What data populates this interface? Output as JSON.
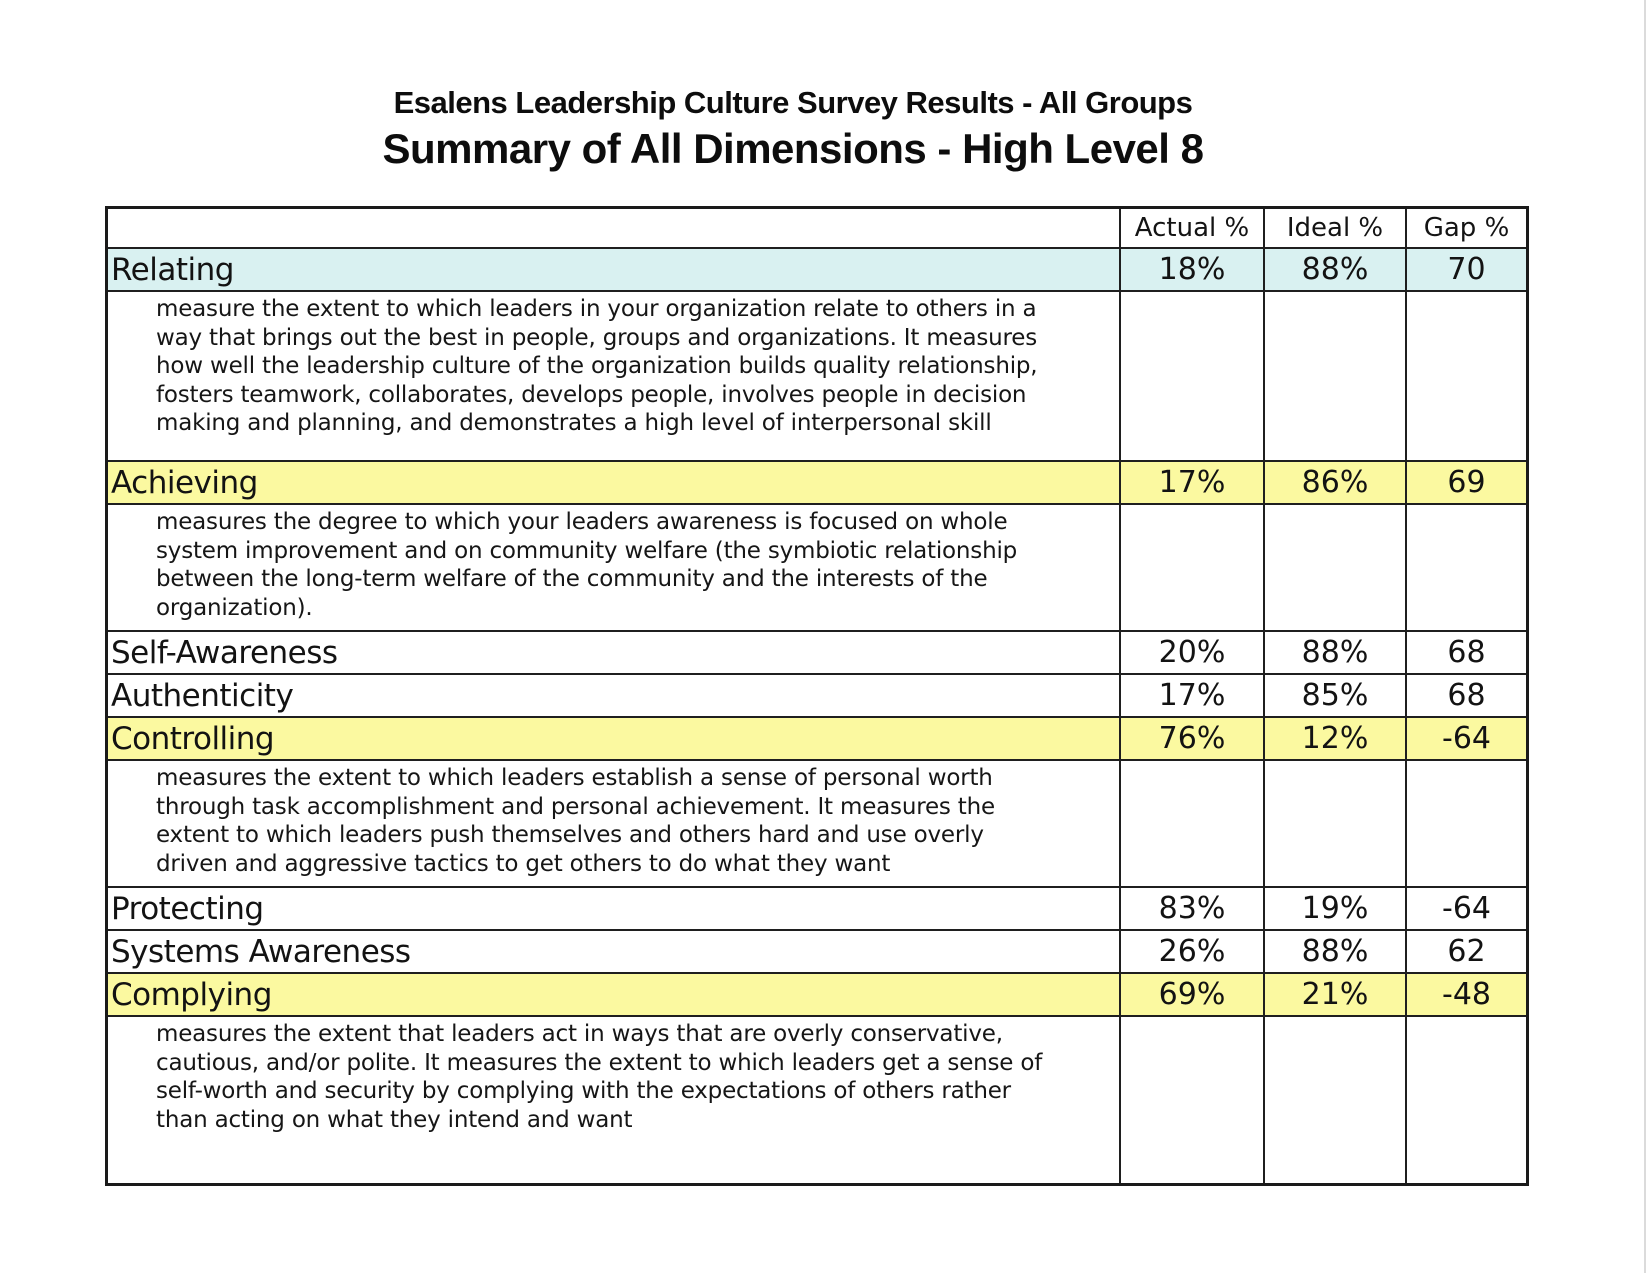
{
  "page": {
    "title_line1": "Esalens Leadership Culture Survey Results - All Groups",
    "title_line2": "Summary of All Dimensions - High Level 8"
  },
  "table": {
    "columns": [
      "Actual %",
      "Ideal %",
      "Gap %"
    ],
    "highlight_colors": {
      "cyan": "#d9f1f1",
      "yellow": "#fbf9a0"
    },
    "rows": [
      {
        "name": "Relating",
        "highlight": "cyan",
        "actual": "18%",
        "ideal": "88%",
        "gap": "70",
        "description": "measure the extent to which leaders in your organization relate to others in a way that brings out the best in people, groups and organizations. It measures how well the leadership culture of the organization builds quality relationship, fosters teamwork, collaborates, develops people, involves people in decision making and planning, and demonstrates a high level of interpersonal skill"
      },
      {
        "name": "Achieving",
        "highlight": "yellow",
        "actual": "17%",
        "ideal": "86%",
        "gap": "69",
        "description": "measures the degree to which your leaders awareness is focused on whole system improvement and on community welfare (the symbiotic relationship between the long-term welfare of the community and the interests of the organization)."
      },
      {
        "name": "Self-Awareness",
        "highlight": null,
        "actual": "20%",
        "ideal": "88%",
        "gap": "68",
        "description": null
      },
      {
        "name": "Authenticity",
        "highlight": null,
        "actual": "17%",
        "ideal": "85%",
        "gap": "68",
        "description": null
      },
      {
        "name": "Controlling",
        "highlight": "yellow",
        "actual": "76%",
        "ideal": "12%",
        "gap": "-64",
        "description": "measures the extent to which leaders establish a sense of personal worth through task accomplishment and personal achievement. It measures the extent to which leaders push themselves and others hard and use overly driven and aggressive tactics to get others to do what they want"
      },
      {
        "name": "Protecting",
        "highlight": null,
        "actual": "83%",
        "ideal": "19%",
        "gap": "-64",
        "description": null
      },
      {
        "name": "Systems Awareness",
        "highlight": null,
        "actual": "26%",
        "ideal": "88%",
        "gap": "62",
        "description": null
      },
      {
        "name": "Complying",
        "highlight": "yellow",
        "actual": "69%",
        "ideal": "21%",
        "gap": "-48",
        "description": "measures the extent that leaders act in ways that are overly conservative, cautious, and/or polite. It measures the extent to which leaders get a sense of self-worth and security by complying with the expectations of others rather than acting on what they intend and want"
      }
    ]
  }
}
